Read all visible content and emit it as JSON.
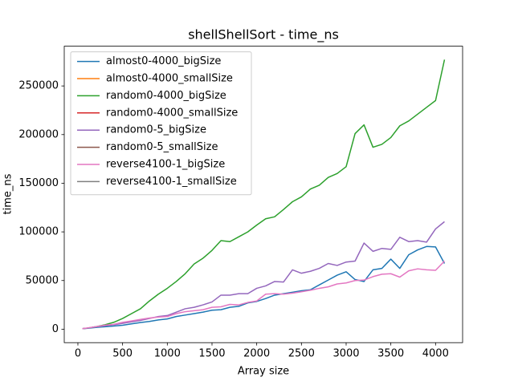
{
  "chart_data": {
    "type": "line",
    "title": "shellShellSort - time_ns",
    "x_label": "Array size",
    "y_label": "time_ns",
    "x": [
      50,
      100,
      200,
      300,
      400,
      500,
      600,
      700,
      800,
      900,
      1000,
      1100,
      1200,
      1300,
      1400,
      1500,
      1600,
      1700,
      1800,
      1900,
      2000,
      2100,
      2200,
      2300,
      2400,
      2500,
      2600,
      2700,
      2800,
      2900,
      3000,
      3100,
      3200,
      3300,
      3400,
      3500,
      3600,
      3700,
      3800,
      3900,
      4000,
      4100
    ],
    "series": [
      {
        "name": "almost0-4000_bigSize",
        "color": "#1f77b4",
        "values": [
          500,
          800,
          1800,
          2500,
          3200,
          4000,
          5500,
          6800,
          8000,
          9500,
          10500,
          13000,
          14500,
          16000,
          17500,
          19500,
          20000,
          22500,
          23500,
          27000,
          28500,
          31500,
          35000,
          36500,
          38000,
          39500,
          40500,
          45500,
          50500,
          55500,
          59000,
          51000,
          49000,
          61000,
          62500,
          72000,
          62500,
          76500,
          81500,
          85000,
          84500,
          67500
        ]
      },
      {
        "name": "almost0-4000_smallSize",
        "color": "#ff7f0e",
        "values": [
          null,
          null,
          null,
          null,
          null,
          null,
          null,
          null,
          null,
          null,
          null,
          null,
          null,
          null,
          null,
          null,
          null,
          null,
          null,
          null,
          null,
          null,
          null,
          null,
          null,
          null,
          null,
          null,
          null,
          null,
          null,
          null,
          null,
          null,
          null,
          null,
          null,
          null,
          null,
          null,
          null,
          null
        ]
      },
      {
        "name": "random0-4000_bigSize",
        "color": "#2ca02c",
        "values": [
          500,
          1000,
          2500,
          4500,
          7000,
          11000,
          16000,
          21000,
          29000,
          36000,
          42000,
          49000,
          57000,
          67000,
          73000,
          81000,
          91000,
          90000,
          95000,
          100000,
          107000,
          113500,
          115500,
          123000,
          131000,
          136000,
          144000,
          148000,
          156000,
          160000,
          167000,
          201000,
          210000,
          187000,
          190000,
          197000,
          209000,
          214000,
          221000,
          228000,
          235000,
          277000
        ]
      },
      {
        "name": "random0-4000_smallSize",
        "color": "#d62728",
        "values": [
          null,
          null,
          null,
          null,
          null,
          null,
          null,
          null,
          null,
          null,
          null,
          null,
          null,
          null,
          null,
          null,
          null,
          null,
          null,
          null,
          null,
          null,
          null,
          null,
          null,
          null,
          null,
          null,
          null,
          null,
          null,
          null,
          null,
          null,
          null,
          null,
          null,
          null,
          null,
          null,
          null,
          null
        ]
      },
      {
        "name": "random0-5_bigSize",
        "color": "#9467bd",
        "values": [
          500,
          1000,
          2500,
          3500,
          4500,
          6000,
          7500,
          9000,
          11000,
          13000,
          14000,
          17500,
          21000,
          22500,
          25000,
          28000,
          35000,
          35000,
          36500,
          36500,
          42000,
          44500,
          49000,
          48500,
          61000,
          57500,
          59500,
          62500,
          67500,
          65500,
          69000,
          70000,
          88500,
          80000,
          83000,
          82000,
          94500,
          90000,
          91000,
          89500,
          103000,
          110500
        ]
      },
      {
        "name": "random0-5_smallSize",
        "color": "#8c564b",
        "values": [
          null,
          null,
          null,
          null,
          null,
          null,
          null,
          null,
          null,
          null,
          null,
          null,
          null,
          null,
          null,
          null,
          null,
          null,
          null,
          null,
          null,
          null,
          null,
          null,
          null,
          null,
          null,
          null,
          null,
          null,
          null,
          null,
          null,
          null,
          null,
          null,
          null,
          null,
          null,
          null,
          null,
          null
        ]
      },
      {
        "name": "reverse4100-1_bigSize",
        "color": "#e377c2",
        "values": [
          500,
          1200,
          2500,
          4000,
          5000,
          7000,
          8500,
          10000,
          11500,
          12500,
          13000,
          16000,
          18000,
          19000,
          20000,
          22500,
          23000,
          25500,
          25000,
          27500,
          29000,
          36000,
          36500,
          36000,
          37000,
          38500,
          40000,
          42000,
          43500,
          46500,
          47500,
          50000,
          50500,
          54000,
          56500,
          57000,
          53500,
          60000,
          62000,
          61000,
          60500,
          70000
        ]
      },
      {
        "name": "reverse4100-1_smallSize",
        "color": "#7f7f7f",
        "values": [
          null,
          null,
          null,
          null,
          null,
          null,
          null,
          null,
          null,
          null,
          null,
          null,
          null,
          null,
          null,
          null,
          null,
          null,
          null,
          null,
          null,
          null,
          null,
          null,
          null,
          null,
          null,
          null,
          null,
          null,
          null,
          null,
          null,
          null,
          null,
          null,
          null,
          null,
          null,
          null,
          null,
          null
        ]
      }
    ],
    "xlim": [
      -152.5,
      4302.5
    ],
    "ylim": [
      -13850,
      290850
    ],
    "xticks": [
      0,
      500,
      1000,
      1500,
      2000,
      2500,
      3000,
      3500,
      4000
    ],
    "yticks": [
      0,
      50000,
      100000,
      150000,
      200000,
      250000
    ],
    "legend": "upper left"
  }
}
